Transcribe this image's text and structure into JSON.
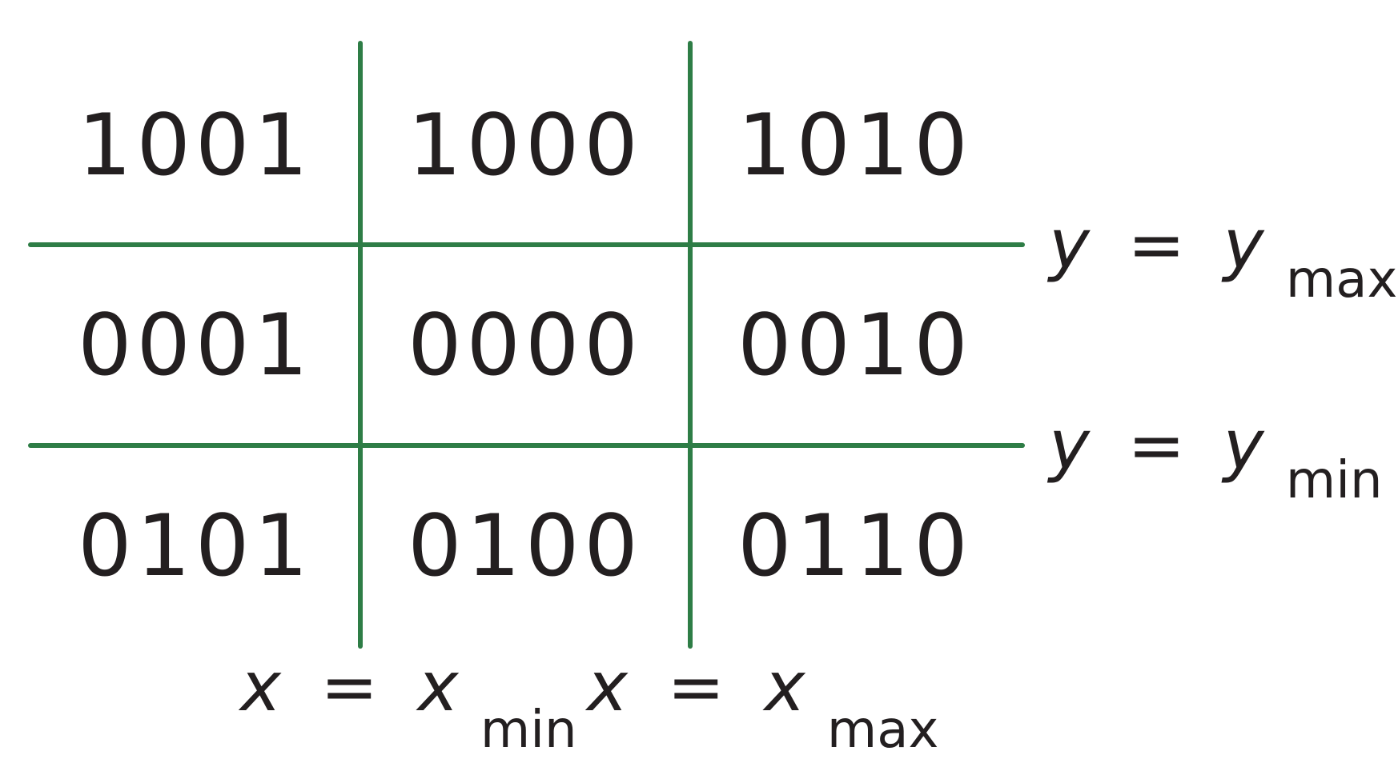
{
  "region_codes": [
    [
      "1001",
      "1000",
      "1010"
    ],
    [
      "0001",
      "0000",
      "0010"
    ],
    [
      "0101",
      "0100",
      "0110"
    ]
  ],
  "boundaries": {
    "y_max": {
      "var": "y",
      "eq": "=",
      "sub": "max"
    },
    "y_min": {
      "var": "y",
      "eq": "=",
      "sub": "min"
    },
    "x_min": {
      "var": "x",
      "eq": "=",
      "sub": "min"
    },
    "x_max": {
      "var": "x",
      "eq": "=",
      "sub": "max"
    }
  },
  "colors": {
    "line": "#2e7d46",
    "text": "#231f20"
  }
}
